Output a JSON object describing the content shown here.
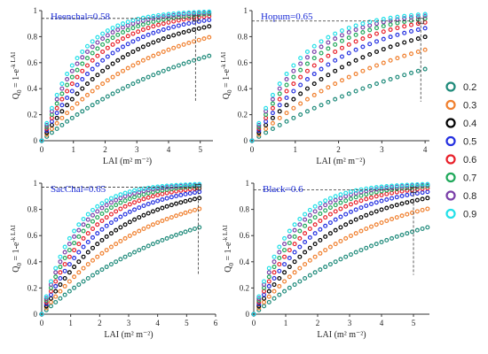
{
  "chart_data": [
    {
      "type": "scatter",
      "annotation": "Heenchal=0.58",
      "xlabel": "LAI (m² m⁻²)",
      "ylabel_main": "Q",
      "ylabel_sub": "0",
      "ylabel_rest": "= 1-e",
      "ylabel_sup": "-k LAI",
      "xlim": [
        0,
        5.4
      ],
      "ylim": [
        0,
        1
      ],
      "xticks": [
        0,
        1,
        2,
        3,
        4,
        5
      ],
      "yticks": [
        0,
        0.2,
        0.4,
        0.6,
        0.8,
        1
      ],
      "x_max": 5.4,
      "marker_lai": 4.85,
      "marker_q": 0.94
    },
    {
      "type": "scatter",
      "annotation": "Hopum=0.65",
      "xlabel": "LAI (m² m⁻²)",
      "ylabel_main": "Q",
      "ylabel_sub": "0",
      "ylabel_rest": "= 1-e",
      "ylabel_sup": "-k LAI",
      "xlim": [
        0,
        4.1
      ],
      "ylim": [
        0,
        1
      ],
      "xticks": [
        0,
        1,
        2,
        3,
        4
      ],
      "yticks": [
        0,
        0.2,
        0.4,
        0.6,
        0.8,
        1
      ],
      "x_max": 4.1,
      "marker_lai": 3.9,
      "marker_q": 0.92
    },
    {
      "type": "scatter",
      "annotation": "SacChal=0.65",
      "xlabel": "LAI (m² m⁻²)",
      "ylabel_main": "Q",
      "ylabel_sub": "0",
      "ylabel_rest": "= 1-e",
      "ylabel_sup": "-k LAI",
      "xlim": [
        0,
        6
      ],
      "ylim": [
        0,
        1
      ],
      "xticks": [
        0,
        1,
        2,
        3,
        4,
        5,
        6
      ],
      "yticks": [
        0,
        0.2,
        0.4,
        0.6,
        0.8,
        1
      ],
      "x_max": 5.5,
      "marker_lai": 5.4,
      "marker_q": 0.97
    },
    {
      "type": "scatter",
      "annotation": "Black=0.6",
      "xlabel": "LAI (m² m⁻²)",
      "ylabel_main": "Q",
      "ylabel_sub": "0",
      "ylabel_rest": "= 1-e",
      "ylabel_sup": "-k LAI",
      "xlim": [
        0,
        5.5
      ],
      "ylim": [
        0,
        1
      ],
      "xticks": [
        0,
        1,
        2,
        3,
        4,
        5
      ],
      "yticks": [
        0,
        0.2,
        0.4,
        0.6,
        0.8,
        1
      ],
      "x_max": 5.5,
      "marker_lai": 5.0,
      "marker_q": 0.95
    }
  ],
  "series": [
    {
      "name": "0.2",
      "k": 0.2,
      "color": "#1e8a7a"
    },
    {
      "name": "0.3",
      "k": 0.3,
      "color": "#f07f2d"
    },
    {
      "name": "0.4",
      "k": 0.4,
      "color": "#000000"
    },
    {
      "name": "0.5",
      "k": 0.5,
      "color": "#2430e0"
    },
    {
      "name": "0.6",
      "k": 0.6,
      "color": "#e8202a"
    },
    {
      "name": "0.7",
      "k": 0.7,
      "color": "#1fa85a"
    },
    {
      "name": "0.8",
      "k": 0.8,
      "color": "#7a3fa8"
    },
    {
      "name": "0.9",
      "k": 0.9,
      "color": "#22e0e8"
    }
  ]
}
